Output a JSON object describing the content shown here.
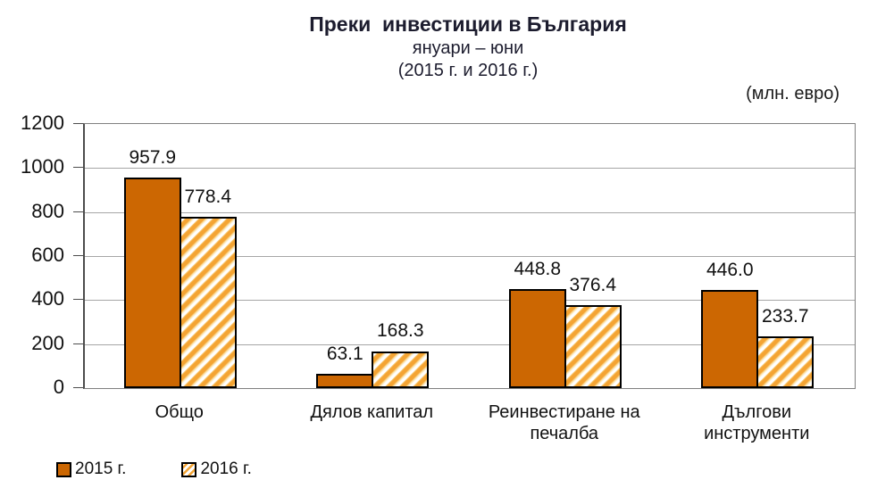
{
  "title": {
    "line1": "Преки  инвестиции в България",
    "line2": "януари – юни",
    "line3": "(2015 г. и 2016 г.)"
  },
  "unit_label": "(млн. евро)",
  "colors": {
    "bar_solid": "#CC6702",
    "hatch_stripe": "#F4A433",
    "hatch_stripe_light": "#FBDFA0",
    "hatch_background": "#FFFFFF",
    "bar_border": "#000000",
    "gridline": "#A6A6A6",
    "frame": "#808080",
    "text": "#111111"
  },
  "chart_data": {
    "type": "bar",
    "title": "Преки инвестиции в България, януари – юни (2015 г. и 2016 г.)",
    "ylabel": "(млн. евро)",
    "categories": [
      "Общо",
      "Дялов капитал",
      "Реинвестиране на печалба",
      "Дългови инструменти"
    ],
    "category_lines": [
      [
        "Общо"
      ],
      [
        "Дялов капитал"
      ],
      [
        "Реинвестиране на",
        "печалба"
      ],
      [
        "Дългови",
        "инструменти"
      ]
    ],
    "series": [
      {
        "name": "2015 г.",
        "style": "solid",
        "values": [
          957.9,
          63.1,
          448.8,
          446.0
        ]
      },
      {
        "name": "2016 г.",
        "style": "hatched",
        "values": [
          778.4,
          168.3,
          376.4,
          233.7
        ]
      }
    ],
    "ylim": [
      0,
      1200
    ],
    "yticks": [
      0,
      200,
      400,
      600,
      800,
      1000,
      1200
    ],
    "grid": true,
    "data_labels": true,
    "legend_position": "bottom-left"
  },
  "legend": {
    "items": [
      {
        "label": "2015 г.",
        "style": "solid"
      },
      {
        "label": "2016 г.",
        "style": "hatched"
      }
    ]
  }
}
